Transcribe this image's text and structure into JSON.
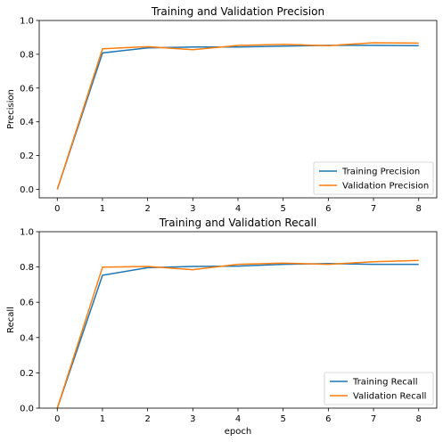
{
  "chart_data": [
    {
      "type": "line",
      "title": "Training and Validation Precision",
      "xlabel": "",
      "ylabel": "Precision",
      "xlim": [
        -0.4,
        8.4
      ],
      "ylim": [
        -0.05,
        1.0
      ],
      "x": [
        0,
        1,
        2,
        3,
        4,
        5,
        6,
        7,
        8
      ],
      "xticks": [
        "0",
        "1",
        "2",
        "3",
        "4",
        "5",
        "6",
        "7",
        "8"
      ],
      "yticks": [
        "0.0",
        "0.2",
        "0.4",
        "0.6",
        "0.8",
        "1.0"
      ],
      "ytick_values": [
        0.0,
        0.2,
        0.4,
        0.6,
        0.8,
        1.0
      ],
      "legend_position": "bottom-right",
      "grid": false,
      "series": [
        {
          "name": "Training Precision",
          "color": "#1f77b4",
          "values": [
            0.0,
            0.808,
            0.838,
            0.843,
            0.843,
            0.848,
            0.853,
            0.853,
            0.851
          ]
        },
        {
          "name": "Validation Precision",
          "color": "#ff7f0e",
          "values": [
            0.0,
            0.833,
            0.845,
            0.827,
            0.852,
            0.859,
            0.851,
            0.868,
            0.866
          ]
        }
      ]
    },
    {
      "type": "line",
      "title": "Training and Validation Recall",
      "xlabel": "epoch",
      "ylabel": "Recall",
      "xlim": [
        -0.4,
        8.4
      ],
      "ylim": [
        0.0,
        1.0
      ],
      "x": [
        0,
        1,
        2,
        3,
        4,
        5,
        6,
        7,
        8
      ],
      "xticks": [
        "0",
        "1",
        "2",
        "3",
        "4",
        "5",
        "6",
        "7",
        "8"
      ],
      "yticks": [
        "0.0",
        "0.2",
        "0.4",
        "0.6",
        "0.8",
        "1.0"
      ],
      "ytick_values": [
        0.0,
        0.2,
        0.4,
        0.6,
        0.8,
        1.0
      ],
      "legend_position": "bottom-right",
      "grid": false,
      "series": [
        {
          "name": "Training Recall",
          "color": "#1f77b4",
          "values": [
            0.0,
            0.753,
            0.796,
            0.803,
            0.805,
            0.815,
            0.819,
            0.815,
            0.815
          ]
        },
        {
          "name": "Validation Recall",
          "color": "#ff7f0e",
          "values": [
            0.0,
            0.799,
            0.803,
            0.785,
            0.815,
            0.822,
            0.815,
            0.83,
            0.837
          ]
        }
      ]
    }
  ]
}
